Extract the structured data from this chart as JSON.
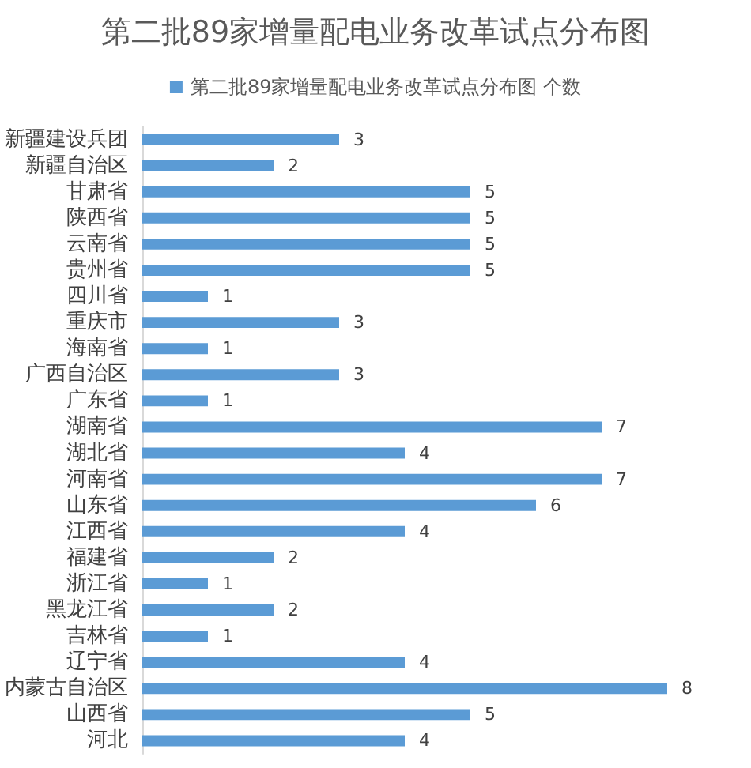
{
  "chart_data": {
    "type": "bar",
    "orientation": "horizontal",
    "title": "第二批89家增量配电业务改革试点分布图",
    "categories": [
      "新疆建设兵团",
      "新疆自治区",
      "甘肃省",
      "陕西省",
      "云南省",
      "贵州省",
      "四川省",
      "重庆市",
      "海南省",
      "广西自治区",
      "广东省",
      "湖南省",
      "湖北省",
      "河南省",
      "山东省",
      "江西省",
      "福建省",
      "浙江省",
      "黑龙江省",
      "吉林省",
      "辽宁省",
      "内蒙古自治区",
      "山西省",
      "河北"
    ],
    "series": [
      {
        "name": "第二批89家增量配电业务改革试点分布图 个数",
        "color": "#5b9bd5",
        "values": [
          3,
          2,
          5,
          5,
          5,
          5,
          1,
          3,
          1,
          3,
          1,
          7,
          4,
          7,
          6,
          4,
          2,
          1,
          2,
          1,
          4,
          8,
          5,
          4
        ]
      }
    ],
    "data_labels": true,
    "legend": "top",
    "tick_labels": "y"
  }
}
